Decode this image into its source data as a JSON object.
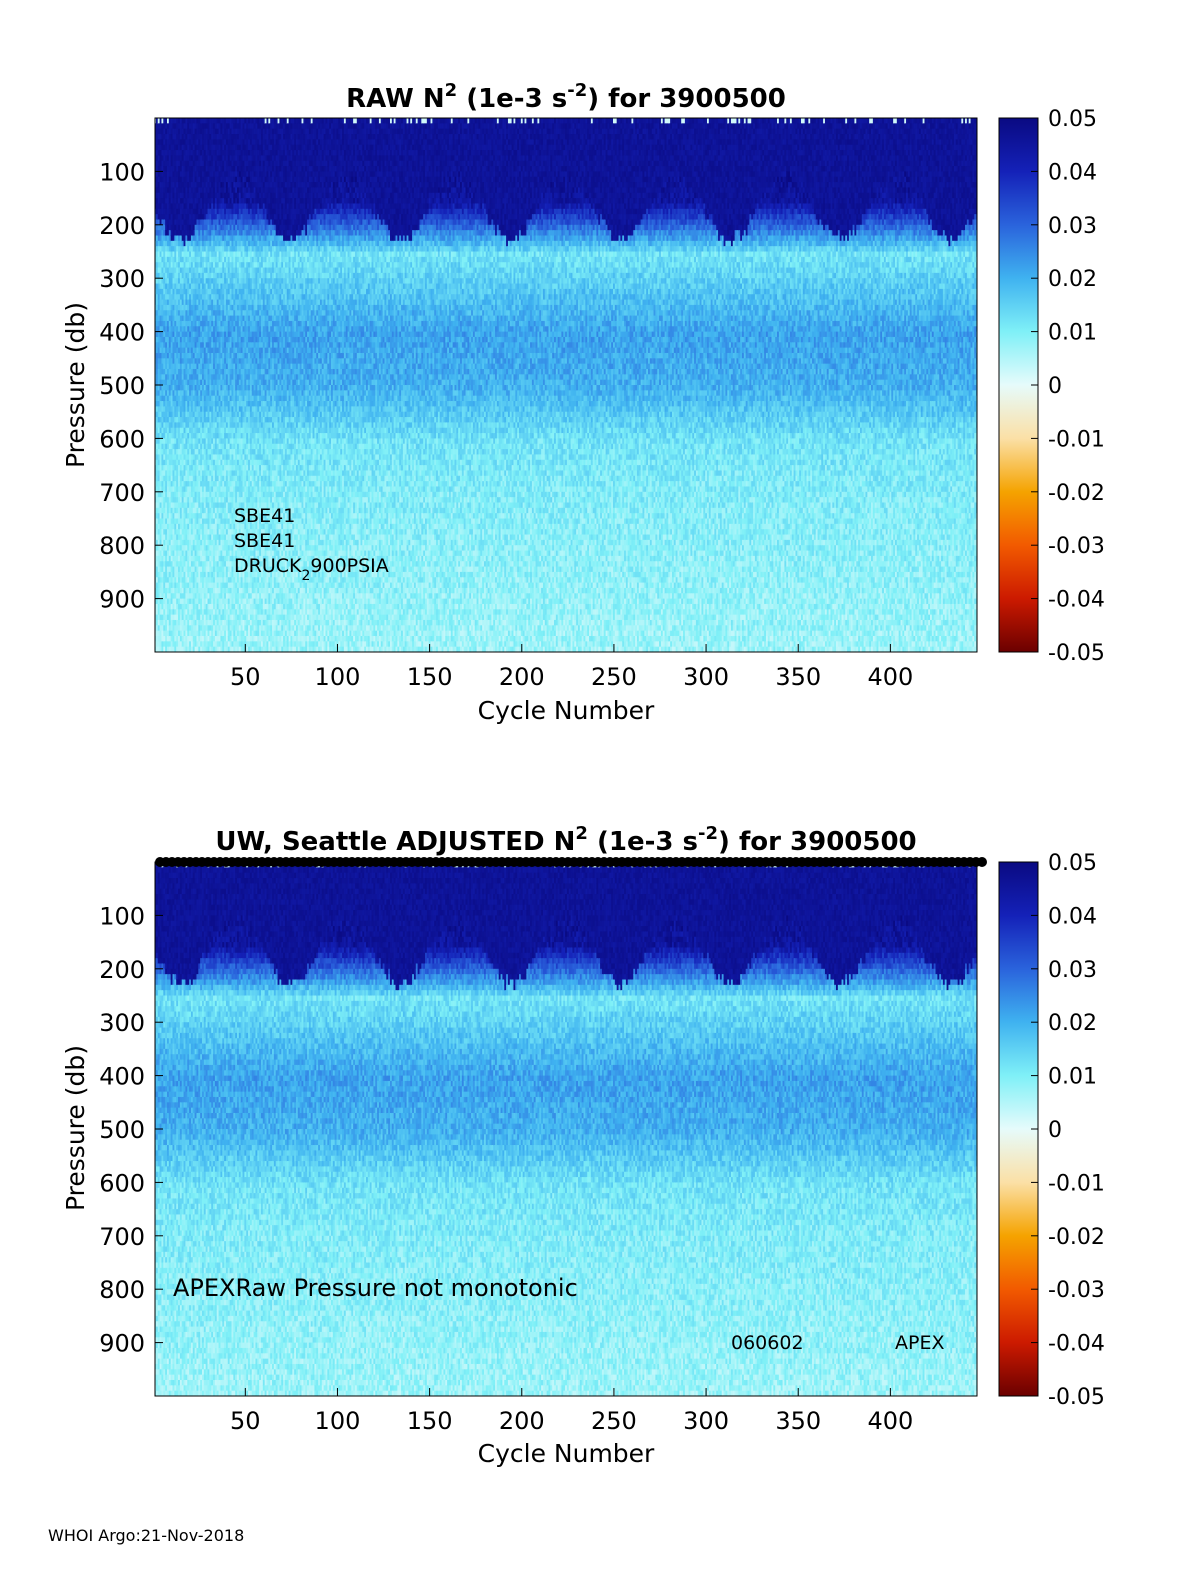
{
  "footer": "WHOI Argo:21-Nov-2018",
  "colorbar": {
    "ticks": [
      0.05,
      0.04,
      0.03,
      0.02,
      0.01,
      0,
      -0.01,
      -0.02,
      -0.03,
      -0.04,
      -0.05
    ],
    "tick_labels": [
      "0.05",
      "0.04",
      "0.03",
      "0.02",
      "0.01",
      "0",
      "-0.01",
      "-0.02",
      "-0.03",
      "-0.04",
      "-0.05"
    ],
    "range": [
      -0.05,
      0.05
    ],
    "colors": [
      "#6b0000",
      "#cc1a00",
      "#f25a00",
      "#f5a300",
      "#fbe0a6",
      "#e6fbfb",
      "#7ff0f7",
      "#3fb2f0",
      "#2a63dc",
      "#1421b8",
      "#0a0a82"
    ]
  },
  "chart_data": [
    {
      "type": "heatmap",
      "title": {
        "prefix": "RAW N",
        "sup1": "2",
        "mid": " (1e-3 s",
        "sup2": "-2",
        "suffix": ") for 3900500"
      },
      "xlabel": "Cycle Number",
      "ylabel": "Pressure (db)",
      "x_ticks": [
        50,
        100,
        150,
        200,
        250,
        300,
        350,
        400
      ],
      "y_ticks": [
        100,
        200,
        300,
        400,
        500,
        600,
        700,
        800,
        900
      ],
      "xlim": [
        1,
        447
      ],
      "ylim": [
        0,
        1000
      ],
      "y_reversed": true,
      "clim": [
        -0.05,
        0.05
      ],
      "annotations": [
        "SBE41",
        "SBE41",
        {
          "a": "DRUCK",
          "sub": "2",
          "b": "900PSIA"
        }
      ],
      "depth_profile": [
        {
          "p": 0,
          "value": 0.05
        },
        {
          "p": 150,
          "value": 0.045
        },
        {
          "p": 250,
          "value": 0.012
        },
        {
          "p": 400,
          "value": 0.022
        },
        {
          "p": 500,
          "value": 0.02
        },
        {
          "p": 600,
          "value": 0.012
        },
        {
          "p": 700,
          "value": 0.01
        },
        {
          "p": 1000,
          "value": 0.007
        }
      ]
    },
    {
      "type": "heatmap",
      "title": {
        "prefix": "UW, Seattle  ADJUSTED N",
        "sup1": "2",
        "mid": " (1e-3 s",
        "sup2": "-2",
        "suffix": ") for 3900500"
      },
      "xlabel": "Cycle Number",
      "ylabel": "Pressure (db)",
      "x_ticks": [
        50,
        100,
        150,
        200,
        250,
        300,
        350,
        400
      ],
      "y_ticks": [
        100,
        200,
        300,
        400,
        500,
        600,
        700,
        800,
        900
      ],
      "xlim": [
        1,
        447
      ],
      "ylim": [
        0,
        1000
      ],
      "y_reversed": true,
      "clim": [
        -0.05,
        0.05
      ],
      "annotations": [
        "APEXRaw Pressure not monotonic",
        "060602",
        "APEX"
      ],
      "depth_profile": [
        {
          "p": 0,
          "value": 0.05
        },
        {
          "p": 150,
          "value": 0.045
        },
        {
          "p": 250,
          "value": 0.012
        },
        {
          "p": 400,
          "value": 0.022
        },
        {
          "p": 500,
          "value": 0.02
        },
        {
          "p": 600,
          "value": 0.012
        },
        {
          "p": 700,
          "value": 0.01
        },
        {
          "p": 1000,
          "value": 0.007
        }
      ]
    }
  ]
}
